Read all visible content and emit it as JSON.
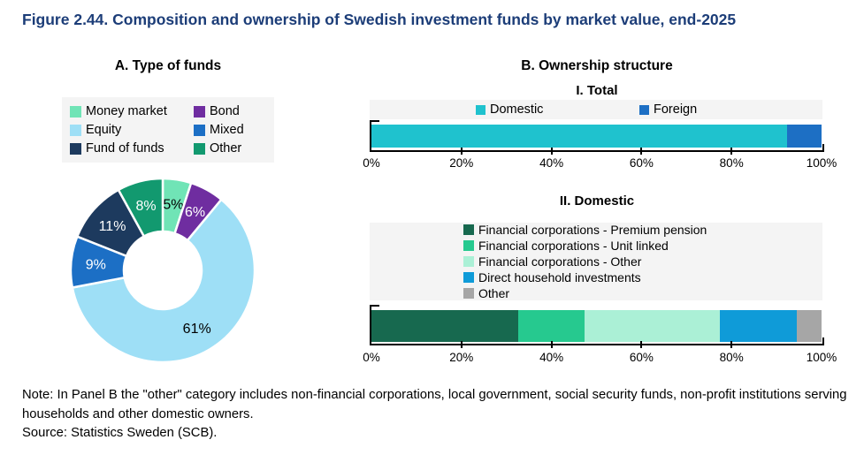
{
  "title": "Figure 2.44. Composition and ownership of Swedish investment funds by market value, end-2025",
  "accent_color": "#1c3d78",
  "panel_a": {
    "heading": "A. Type of funds",
    "chart_data": {
      "type": "pie",
      "subtype": "donut",
      "title": "A. Type of funds",
      "unit": "%",
      "categories": [
        "Money market",
        "Bond",
        "Equity",
        "Mixed",
        "Fund of funds",
        "Other"
      ],
      "values": [
        5,
        6,
        61,
        9,
        11,
        8
      ],
      "colors": [
        "#70e4b6",
        "#6f2da0",
        "#9edff6",
        "#1c6fc5",
        "#1d3a5e",
        "#12996f"
      ],
      "data_labels": [
        "5%",
        "6%",
        "61%",
        "9%",
        "11%",
        "8%"
      ],
      "data_label_colors": [
        "#000000",
        "#ffffff",
        "#000000",
        "#ffffff",
        "#ffffff",
        "#ffffff"
      ],
      "legend_position": "top",
      "start_angle_deg": 0,
      "direction": "clockwise"
    }
  },
  "panel_b": {
    "heading": "B. Ownership structure",
    "sections": [
      {
        "heading": "I. Total",
        "chart_data": {
          "type": "bar",
          "orientation": "horizontal",
          "stacked": true,
          "title": "I. Total",
          "unit": "%",
          "xlim": [
            0,
            100
          ],
          "x_ticks": [
            "0%",
            "20%",
            "40%",
            "60%",
            "80%",
            "100%"
          ],
          "grid": false,
          "legend_position": "top",
          "series": [
            {
              "name": "Domestic",
              "value": 92.3,
              "color": "#1fc2ce"
            },
            {
              "name": "Foreign",
              "value": 7.7,
              "color": "#1d6fc4"
            }
          ]
        }
      },
      {
        "heading": "II. Domestic",
        "chart_data": {
          "type": "bar",
          "orientation": "horizontal",
          "stacked": true,
          "title": "II. Domestic",
          "unit": "%",
          "xlim": [
            0,
            100
          ],
          "x_ticks": [
            "0%",
            "20%",
            "40%",
            "60%",
            "80%",
            "100%"
          ],
          "grid": false,
          "legend_position": "top",
          "series": [
            {
              "name": "Financial corporations - Premium pension",
              "value": 32.7,
              "color": "#17694f"
            },
            {
              "name": "Financial corporations - Unit linked",
              "value": 14.6,
              "color": "#26c98f"
            },
            {
              "name": "Financial corporations - Other",
              "value": 30.2,
              "color": "#abf0d6"
            },
            {
              "name": "Direct household investments",
              "value": 17.1,
              "color": "#0f9bd8"
            },
            {
              "name": "Other",
              "value": 5.4,
              "color": "#a6a6a6"
            }
          ]
        }
      }
    ]
  },
  "note": "Note: In Panel B the \"other\" category includes non-financial corporations, local government, social security funds, non-profit institutions serving households and other domestic owners.",
  "source": "Source: Statistics Sweden (SCB)."
}
